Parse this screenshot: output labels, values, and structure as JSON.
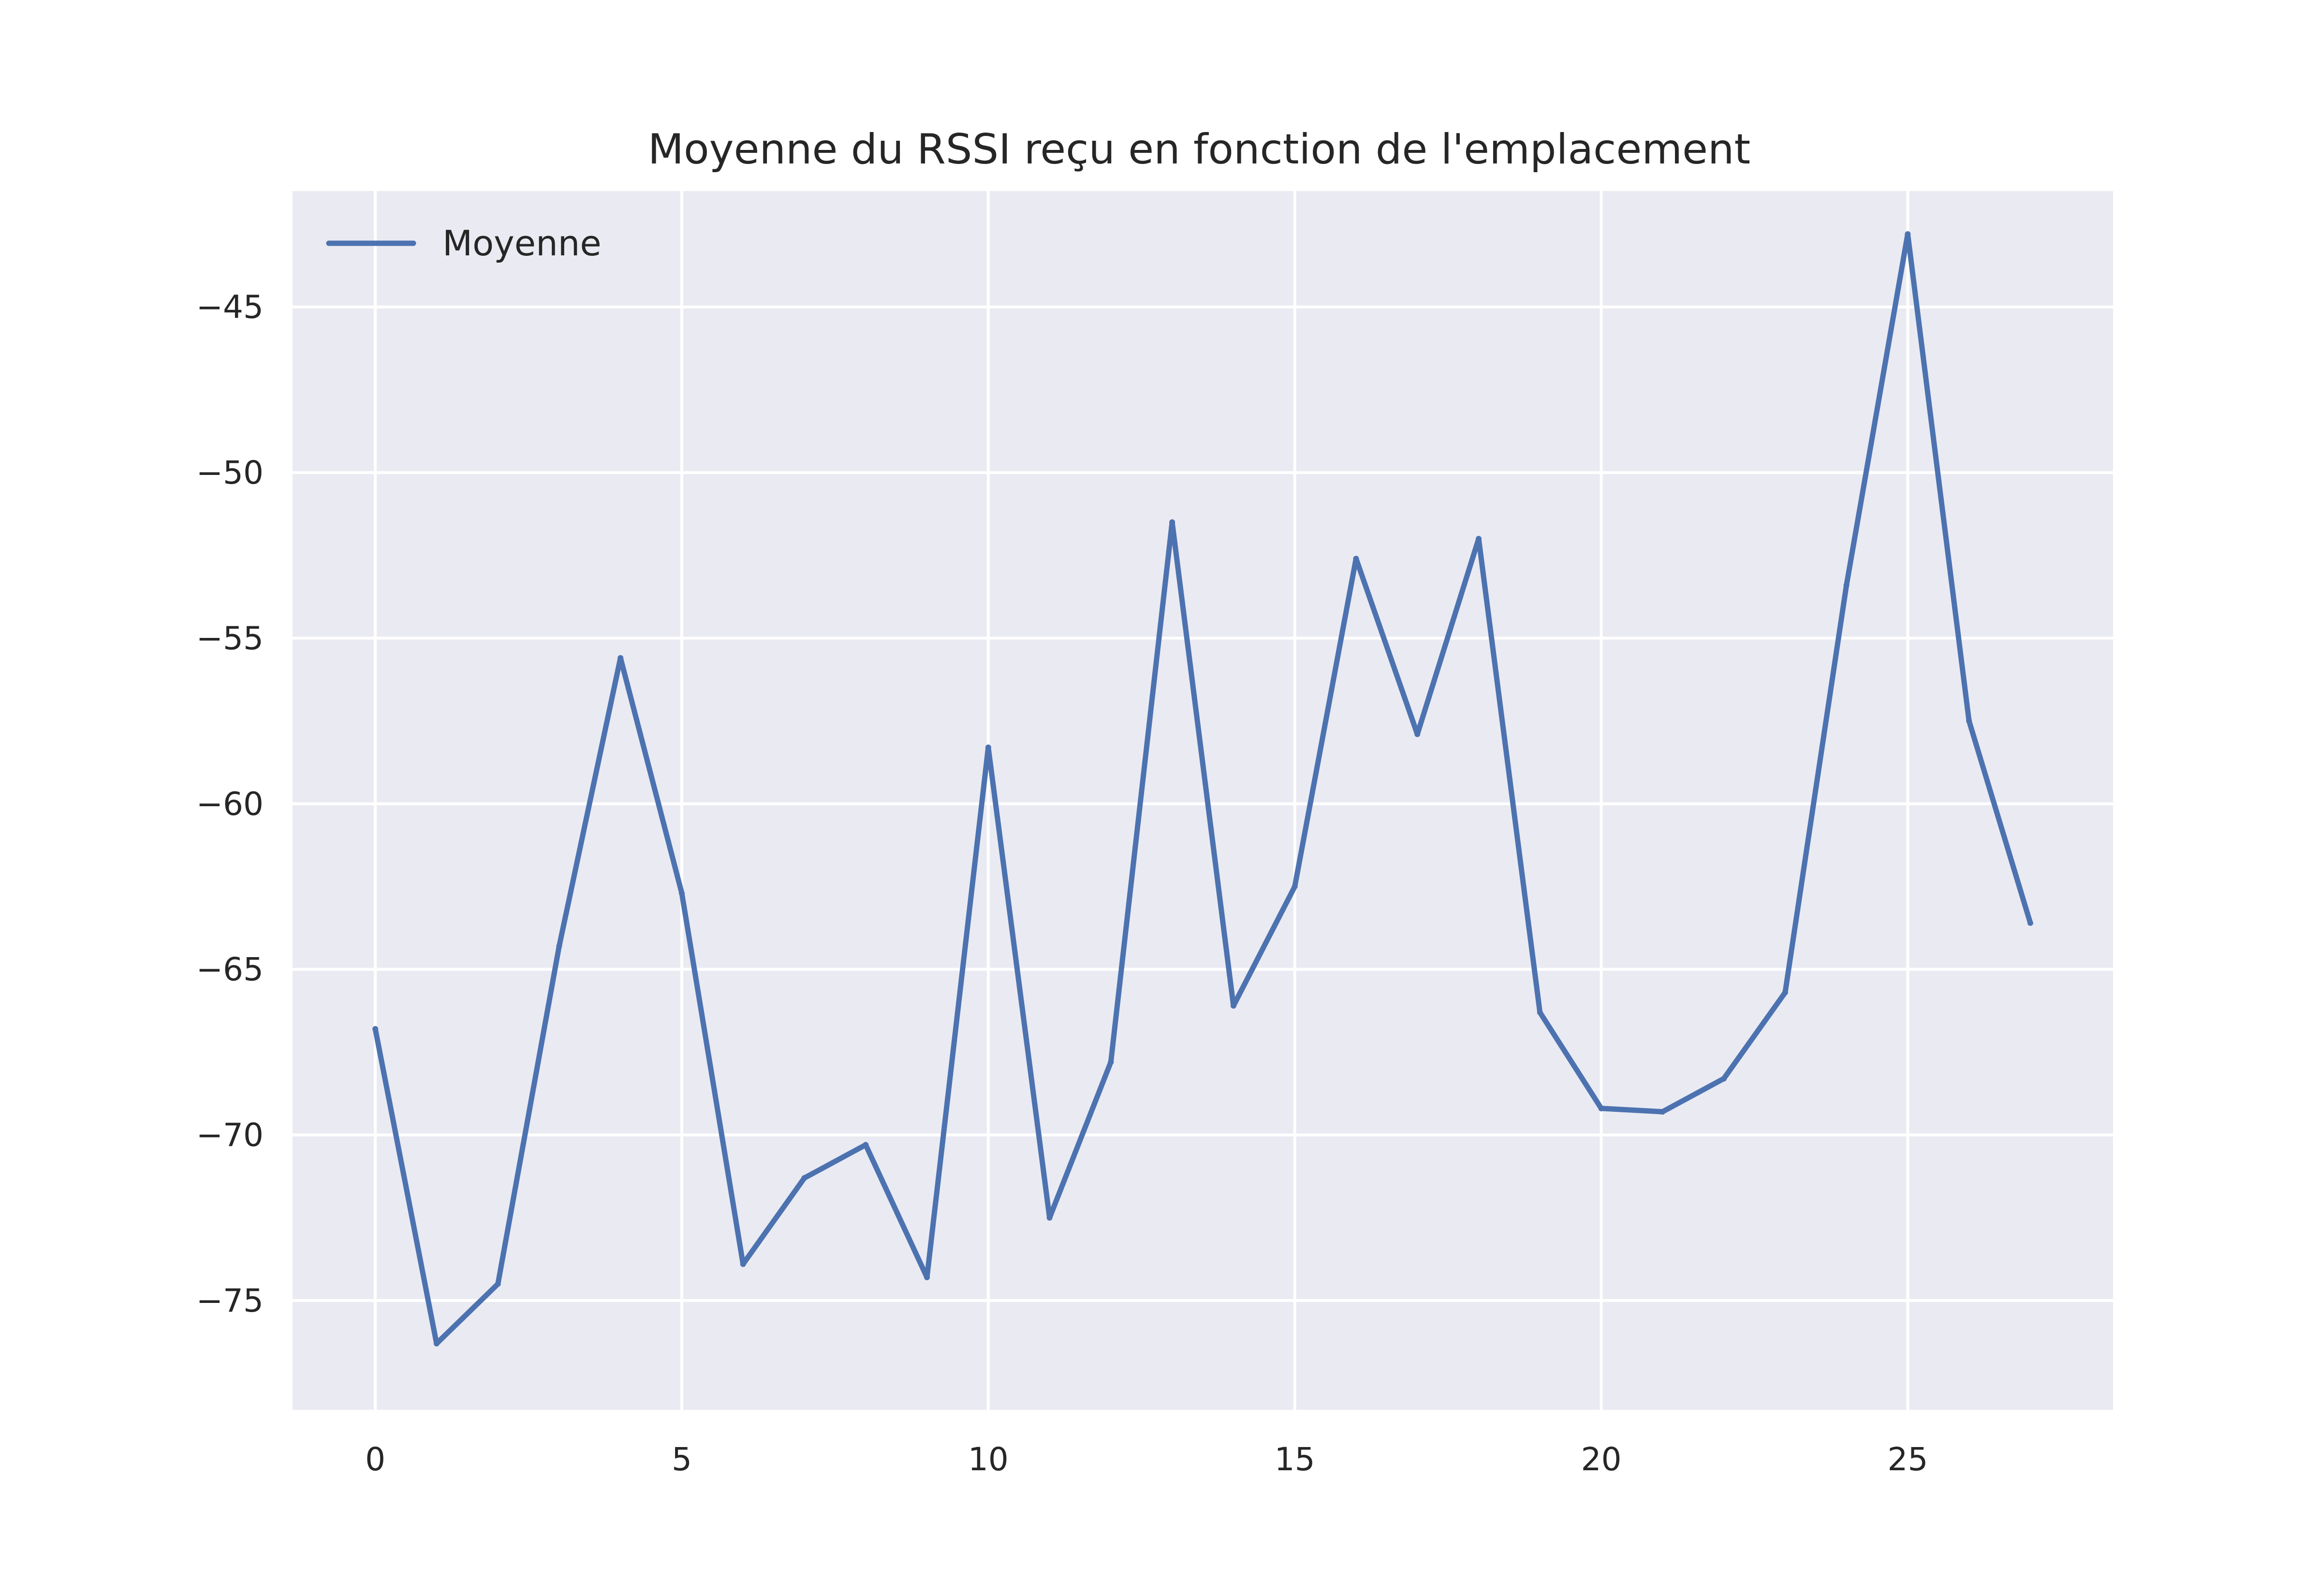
{
  "chart_data": {
    "type": "line",
    "title": "Moyenne du RSSI reçu en fonction de l'emplacement",
    "xlabel": "",
    "ylabel": "",
    "x": [
      0,
      1,
      2,
      3,
      4,
      5,
      6,
      7,
      8,
      9,
      10,
      11,
      12,
      13,
      14,
      15,
      16,
      17,
      18,
      19,
      20,
      21,
      22,
      23,
      24,
      25,
      26,
      27
    ],
    "series": [
      {
        "name": "Moyenne",
        "color": "#4c72b0",
        "values": [
          -66.8,
          -76.3,
          -74.5,
          -64.3,
          -55.6,
          -62.7,
          -73.9,
          -71.3,
          -70.3,
          -74.3,
          -58.3,
          -72.5,
          -67.8,
          -51.5,
          -66.1,
          -62.5,
          -52.6,
          -57.9,
          -52.0,
          -66.3,
          -69.2,
          -69.3,
          -68.3,
          -65.7,
          -53.4,
          -42.8,
          -57.5,
          -63.6
        ]
      }
    ],
    "xlim": [
      -1.35,
      28.35
    ],
    "ylim": [
      -78.3,
      -41.5
    ],
    "xticks": [
      0,
      5,
      10,
      15,
      20,
      25
    ],
    "yticks": [
      -45,
      -50,
      -55,
      -60,
      -65,
      -70,
      -75
    ],
    "xtick_labels": [
      "0",
      "5",
      "10",
      "15",
      "20",
      "25"
    ],
    "ytick_labels": [
      "−45",
      "−50",
      "−55",
      "−60",
      "−65",
      "−70",
      "−75"
    ],
    "grid": true,
    "legend_position": "upper-left",
    "background_color": "#eaeaf2",
    "grid_color": "#ffffff"
  }
}
